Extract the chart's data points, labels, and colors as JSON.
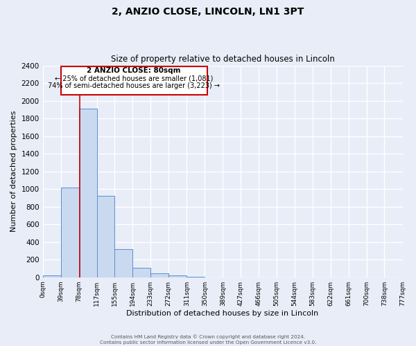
{
  "title": "2, ANZIO CLOSE, LINCOLN, LN1 3PT",
  "subtitle": "Size of property relative to detached houses in Lincoln",
  "xlabel": "Distribution of detached houses by size in Lincoln",
  "ylabel": "Number of detached properties",
  "bin_edges": [
    0,
    39,
    78,
    117,
    155,
    194,
    233,
    272,
    311,
    350,
    389,
    427,
    466,
    505,
    544,
    583,
    622,
    661,
    700,
    738,
    777
  ],
  "bin_labels": [
    "0sqm",
    "39sqm",
    "78sqm",
    "117sqm",
    "155sqm",
    "194sqm",
    "233sqm",
    "272sqm",
    "311sqm",
    "350sqm",
    "389sqm",
    "427sqm",
    "466sqm",
    "505sqm",
    "544sqm",
    "583sqm",
    "622sqm",
    "661sqm",
    "700sqm",
    "738sqm",
    "777sqm"
  ],
  "bar_heights": [
    20,
    1020,
    1910,
    920,
    320,
    105,
    45,
    20,
    5,
    0,
    0,
    0,
    0,
    0,
    0,
    0,
    0,
    0,
    0,
    0
  ],
  "bar_color": "#c9d9f0",
  "bar_edge_color": "#5b8fc9",
  "marker_value": 80,
  "marker_color": "#cc0000",
  "ylim": [
    0,
    2400
  ],
  "yticks": [
    0,
    200,
    400,
    600,
    800,
    1000,
    1200,
    1400,
    1600,
    1800,
    2000,
    2200,
    2400
  ],
  "annotation_title": "2 ANZIO CLOSE: 80sqm",
  "annotation_line1": "← 25% of detached houses are smaller (1,081)",
  "annotation_line2": "74% of semi-detached houses are larger (3,223) →",
  "footer_line1": "Contains HM Land Registry data © Crown copyright and database right 2024.",
  "footer_line2": "Contains public sector information licensed under the Open Government Licence v3.0.",
  "background_color": "#e8edf8",
  "grid_color": "#ffffff",
  "bar_face_alpha": 0.5,
  "box_color": "#cc0000"
}
